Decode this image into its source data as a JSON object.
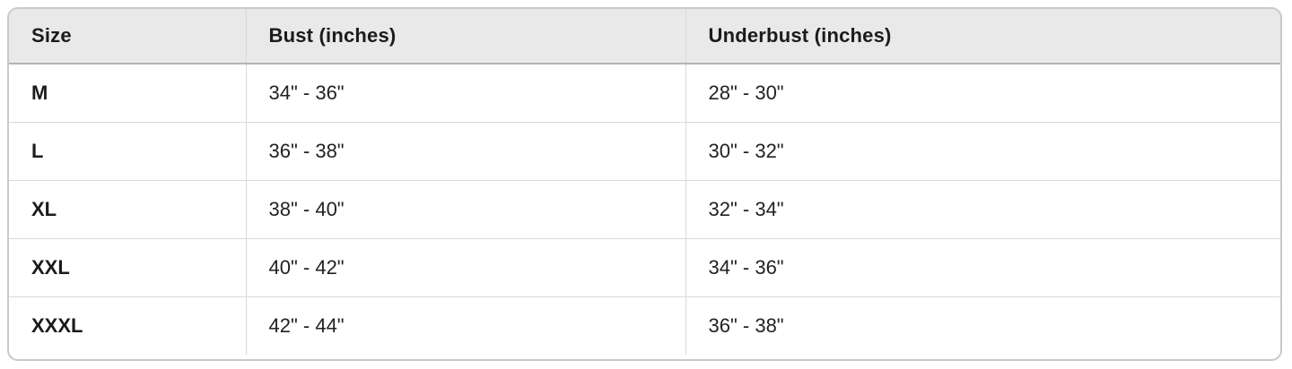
{
  "colors": {
    "page_background": "#ffffff",
    "header_background": "#e9e9e9",
    "outer_border": "#c9c9c9",
    "header_divider": "#b3b3b3",
    "cell_divider": "#d9d9d9",
    "text": "#1b1b1b"
  },
  "size_chart": {
    "columns": [
      {
        "label": "Size"
      },
      {
        "label": "Bust (inches)"
      },
      {
        "label": "Underbust (inches)"
      }
    ],
    "rows": [
      {
        "size": "M",
        "bust": "34\" - 36\"",
        "underbust": "28\" - 30\""
      },
      {
        "size": "L",
        "bust": "36\" - 38\"",
        "underbust": "30\" - 32\""
      },
      {
        "size": "XL",
        "bust": "38\" - 40\"",
        "underbust": "32\" - 34\""
      },
      {
        "size": "XXL",
        "bust": "40\" - 42\"",
        "underbust": "34\" - 36\""
      },
      {
        "size": "XXXL",
        "bust": "42\" - 44\"",
        "underbust": "36\" - 38\""
      }
    ]
  },
  "chart_data": {
    "type": "table",
    "columns": [
      "Size",
      "Bust (inches)",
      "Underbust (inches)"
    ],
    "rows": [
      [
        "M",
        "34\" - 36\"",
        "28\" - 30\""
      ],
      [
        "L",
        "36\" - 38\"",
        "30\" - 32\""
      ],
      [
        "XL",
        "38\" - 40\"",
        "32\" - 34\""
      ],
      [
        "XXL",
        "40\" - 42\"",
        "34\" - 36\""
      ],
      [
        "XXXL",
        "42\" - 44\"",
        "36\" - 38\""
      ]
    ]
  }
}
